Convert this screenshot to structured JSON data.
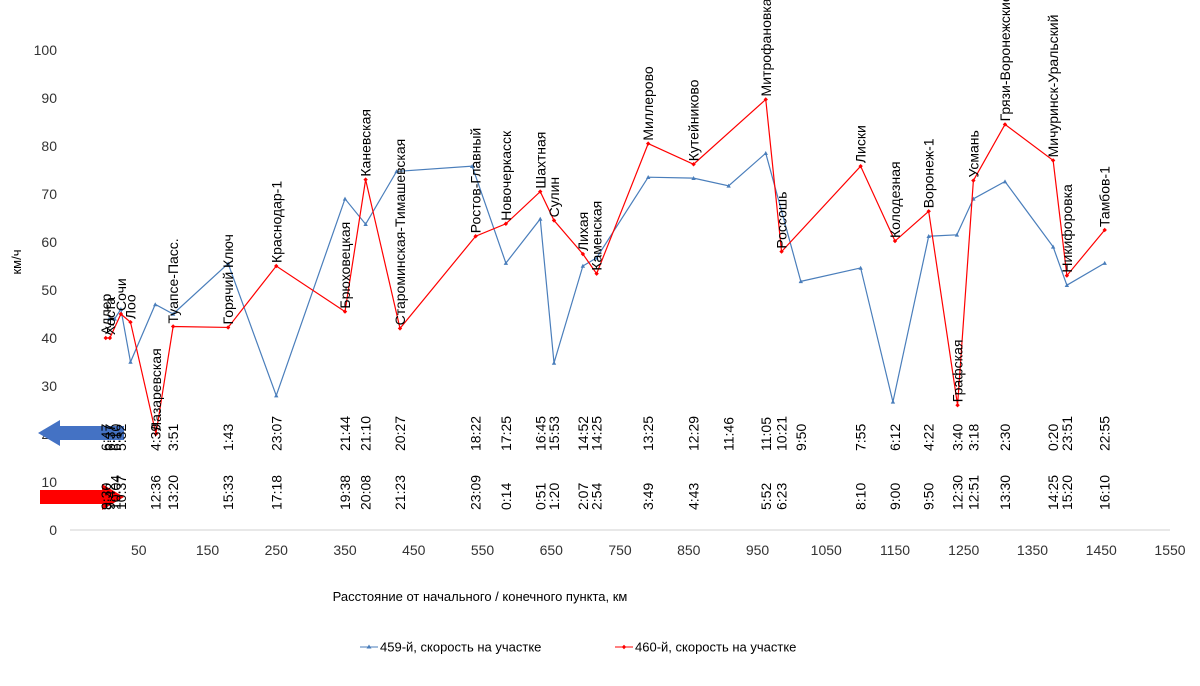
{
  "chart_data": {
    "type": "line",
    "xlabel": "Расстояние от начального / конечного пункта, км",
    "ylabel": "км/ч",
    "ylim": [
      0,
      100
    ],
    "xlim": [
      -50,
      1550
    ],
    "yticks": [
      "0",
      "10",
      "20",
      "30",
      "40",
      "50",
      "60",
      "70",
      "80",
      "90",
      "100"
    ],
    "xticks": [
      "50",
      "150",
      "250",
      "350",
      "450",
      "550",
      "650",
      "750",
      "850",
      "950",
      "1050",
      "1150",
      "1250",
      "1350",
      "1450",
      "1550"
    ],
    "colors": {
      "s459": "#4a7ebb",
      "s460": "#ff0000",
      "arrow459": "#4472c4",
      "arrow460": "#ff0000"
    },
    "series": [
      {
        "name": "459-й, скорость на участке",
        "x": [
          7,
          15,
          24,
          38,
          74,
          100,
          180,
          250,
          350,
          380,
          425,
          535,
          584,
          634,
          654,
          696,
          716,
          791,
          857,
          908,
          962,
          1013,
          1100,
          1147,
          1199,
          1240,
          1264,
          1310,
          1380,
          1400,
          1455
        ],
        "y": [
          44,
          44,
          46,
          35,
          47,
          45,
          55.5,
          28,
          69,
          63.7,
          74.7,
          75.8,
          55.6,
          64.8,
          34.8,
          55,
          56.7,
          73.5,
          73.3,
          71.7,
          78.5,
          51.8,
          54.6,
          26.7,
          61.2,
          61.5,
          69,
          72.6,
          59,
          51,
          55.6
        ]
      },
      {
        "name": "460-й, скорость на участке",
        "x": [
          2,
          8,
          24,
          38,
          75,
          100,
          180,
          250,
          350,
          380,
          430,
          540,
          584,
          634,
          654,
          696,
          716,
          791,
          857,
          962,
          985,
          1100,
          1150,
          1199,
          1241,
          1264,
          1310,
          1380,
          1400,
          1455
        ],
        "y": [
          40,
          40,
          45,
          43.3,
          20,
          42.4,
          42.2,
          55,
          45.5,
          73,
          42,
          61.2,
          63.8,
          70.5,
          64.5,
          57.5,
          53.4,
          80.5,
          76.2,
          89.7,
          58,
          75.8,
          60.2,
          66.4,
          26,
          72.8,
          84.5,
          77,
          53,
          62.5
        ]
      }
    ],
    "stations": [
      {
        "name": "Адлер",
        "x": 2,
        "y": 40
      },
      {
        "name": "Хоста",
        "x": 8,
        "y": 40
      },
      {
        "name": "Сочи",
        "x": 24,
        "y": 45
      },
      {
        "name": "Лоо",
        "x": 38,
        "y": 43.3
      },
      {
        "name": "Лазаревская",
        "x": 75,
        "y": 20
      },
      {
        "name": "Туапсе-Пасс.",
        "x": 100,
        "y": 42.4
      },
      {
        "name": "Горячий Ключ",
        "x": 180,
        "y": 42.2
      },
      {
        "name": "Краснодар-1",
        "x": 250,
        "y": 55
      },
      {
        "name": "Брюховецкая",
        "x": 350,
        "y": 45.5
      },
      {
        "name": "Каневская",
        "x": 380,
        "y": 73
      },
      {
        "name": "Староминская-Тимашевская",
        "x": 430,
        "y": 42
      },
      {
        "name": "Ростов-Главный",
        "x": 540,
        "y": 61.2
      },
      {
        "name": "Новочеркасск",
        "x": 584,
        "y": 63.8
      },
      {
        "name": "Шахтная",
        "x": 634,
        "y": 70.5
      },
      {
        "name": "Сулин",
        "x": 654,
        "y": 64.5
      },
      {
        "name": "Лихая",
        "x": 696,
        "y": 57.5
      },
      {
        "name": "Каменская",
        "x": 716,
        "y": 53.4
      },
      {
        "name": "Миллерово",
        "x": 791,
        "y": 80.5
      },
      {
        "name": "Кутейниково",
        "x": 857,
        "y": 76.2
      },
      {
        "name": "Митрофановка",
        "x": 962,
        "y": 89.7
      },
      {
        "name": "Россошь",
        "x": 985,
        "y": 58
      },
      {
        "name": "Лиски",
        "x": 1100,
        "y": 75.8
      },
      {
        "name": "Колодезная",
        "x": 1150,
        "y": 60.2
      },
      {
        "name": "Воронеж-1",
        "x": 1199,
        "y": 66.4
      },
      {
        "name": "Графская",
        "x": 1241,
        "y": 26
      },
      {
        "name": "Усмань",
        "x": 1264,
        "y": 72.8
      },
      {
        "name": "Грязи-Воронежские",
        "x": 1310,
        "y": 84.5
      },
      {
        "name": "Мичуринск-Уральский",
        "x": 1380,
        "y": 77
      },
      {
        "name": "Никифоровка",
        "x": 1400,
        "y": 53
      },
      {
        "name": "Тамбов-1",
        "x": 1455,
        "y": 62.5
      }
    ],
    "times_459": [
      {
        "t": "6:47",
        "x": 2
      },
      {
        "t": "6:37",
        "x": 8
      },
      {
        "t": "6:10",
        "x": 16
      },
      {
        "t": "5:32",
        "x": 24
      },
      {
        "t": "4:39",
        "x": 74
      },
      {
        "t": "3:51",
        "x": 100
      },
      {
        "t": "1:43",
        "x": 180
      },
      {
        "t": "23:07",
        "x": 250
      },
      {
        "t": "21:44",
        "x": 350
      },
      {
        "t": "21:10",
        "x": 380
      },
      {
        "t": "20:27",
        "x": 430
      },
      {
        "t": "18:22",
        "x": 540
      },
      {
        "t": "17:25",
        "x": 584
      },
      {
        "t": "16:45",
        "x": 634
      },
      {
        "t": "15:53",
        "x": 654
      },
      {
        "t": "14:52",
        "x": 696
      },
      {
        "t": "14:25",
        "x": 716
      },
      {
        "t": "13:25",
        "x": 791
      },
      {
        "t": "12:29",
        "x": 857
      },
      {
        "t": "11:46",
        "x": 908
      },
      {
        "t": "11:05",
        "x": 962
      },
      {
        "t": "10:21",
        "x": 985
      },
      {
        "t": "9:50",
        "x": 1013
      },
      {
        "t": "7:55",
        "x": 1100
      },
      {
        "t": "6:12",
        "x": 1150
      },
      {
        "t": "4:22",
        "x": 1199
      },
      {
        "t": "3:40",
        "x": 1241
      },
      {
        "t": "3:18",
        "x": 1264
      },
      {
        "t": "2:30",
        "x": 1310
      },
      {
        "t": "0:20",
        "x": 1380
      },
      {
        "t": "23:51",
        "x": 1400
      },
      {
        "t": "22:55",
        "x": 1455
      }
    ],
    "times_460": [
      {
        "t": "9:30",
        "x": 2
      },
      {
        "t": "9:42",
        "x": 8
      },
      {
        "t": "10:04",
        "x": 16
      },
      {
        "t": "10:37",
        "x": 24
      },
      {
        "t": "12:36",
        "x": 74
      },
      {
        "t": "13:20",
        "x": 100
      },
      {
        "t": "15:33",
        "x": 180
      },
      {
        "t": "17:18",
        "x": 250
      },
      {
        "t": "19:38",
        "x": 350
      },
      {
        "t": "20:08",
        "x": 380
      },
      {
        "t": "21:23",
        "x": 430
      },
      {
        "t": "23:09",
        "x": 540
      },
      {
        "t": "0:14",
        "x": 584
      },
      {
        "t": "0:51",
        "x": 634
      },
      {
        "t": "1:20",
        "x": 654
      },
      {
        "t": "2:07",
        "x": 696
      },
      {
        "t": "2:54",
        "x": 716
      },
      {
        "t": "3:49",
        "x": 791
      },
      {
        "t": "4:43",
        "x": 857
      },
      {
        "t": "5:52",
        "x": 962
      },
      {
        "t": "6:23",
        "x": 985
      },
      {
        "t": "8:10",
        "x": 1100
      },
      {
        "t": "9:00",
        "x": 1150
      },
      {
        "t": "9:50",
        "x": 1199
      },
      {
        "t": "12:30",
        "x": 1241
      },
      {
        "t": "12:51",
        "x": 1264
      },
      {
        "t": "13:30",
        "x": 1310
      },
      {
        "t": "14:25",
        "x": 1380
      },
      {
        "t": "15:20",
        "x": 1400
      },
      {
        "t": "16:10",
        "x": 1455
      }
    ]
  }
}
